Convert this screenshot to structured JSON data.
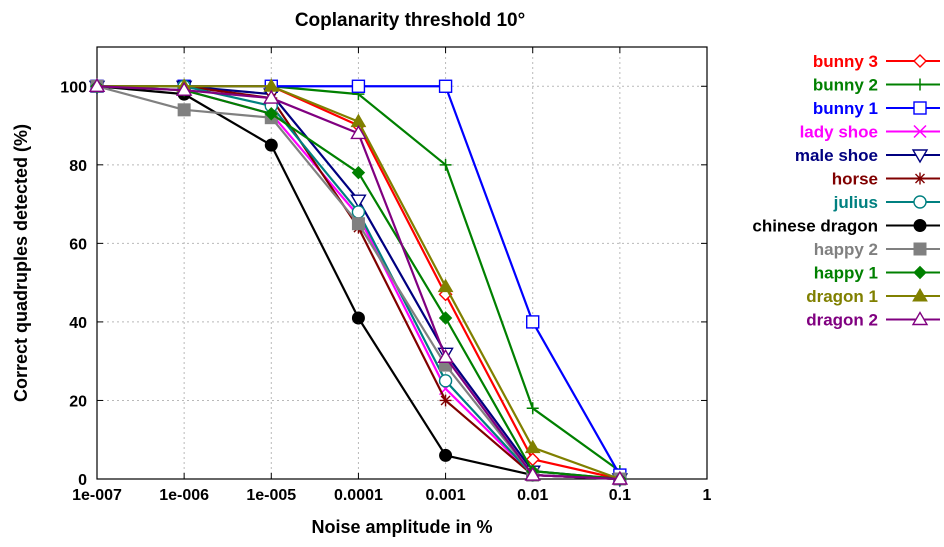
{
  "chart_data": {
    "type": "line",
    "title": "Coplanarity threshold 10°",
    "xlabel": "Noise amplitude in %",
    "ylabel": "Correct quadruples detected (%)",
    "x_scale": "log",
    "xlim": [
      1e-07,
      1
    ],
    "ylim": [
      0,
      110
    ],
    "x_ticks": [
      1e-07,
      1e-06,
      1e-05,
      0.0001,
      0.001,
      0.01,
      0.1,
      1
    ],
    "x_tick_labels": [
      "1e-007",
      "1e-006",
      "1e-005",
      "0.0001",
      "0.001",
      "0.01",
      "0.1",
      "1"
    ],
    "y_ticks": [
      0,
      20,
      40,
      60,
      80,
      100
    ],
    "y_tick_labels": [
      "0",
      "20",
      "40",
      "60",
      "80",
      "100"
    ],
    "grid": true,
    "legend_position": "outside-right",
    "x": [
      1e-07,
      1e-06,
      1e-05,
      0.0001,
      0.001,
      0.01,
      0.1
    ],
    "series": [
      {
        "name": "bunny 3",
        "color": "#ff0000",
        "marker": "diamond-open",
        "values": [
          100,
          100,
          100,
          90,
          47,
          5,
          0
        ]
      },
      {
        "name": "bunny 2",
        "color": "#008000",
        "marker": "plus",
        "values": [
          100,
          100,
          100,
          98,
          80,
          18,
          2
        ]
      },
      {
        "name": "bunny 1",
        "color": "#0000ff",
        "marker": "square-open",
        "values": [
          100,
          100,
          100,
          100,
          100,
          40,
          1
        ]
      },
      {
        "name": "lady shoe",
        "color": "#ff00ff",
        "marker": "cross",
        "values": [
          100,
          99,
          93,
          67,
          23,
          1,
          0
        ]
      },
      {
        "name": "male shoe",
        "color": "#000080",
        "marker": "triangle-down-open",
        "values": [
          100,
          100,
          98,
          71,
          32,
          2,
          0
        ]
      },
      {
        "name": "horse",
        "color": "#800000",
        "marker": "star",
        "values": [
          100,
          100,
          97,
          64,
          20,
          1,
          0
        ]
      },
      {
        "name": "julius",
        "color": "#008080",
        "marker": "circle-open",
        "values": [
          100,
          100,
          95,
          68,
          25,
          1,
          0
        ]
      },
      {
        "name": "chinese dragon",
        "color": "#000000",
        "marker": "circle-filled",
        "values": [
          100,
          98,
          85,
          41,
          6,
          1,
          0
        ]
      },
      {
        "name": "happy 2",
        "color": "#808080",
        "marker": "square-filled",
        "values": [
          100,
          94,
          92,
          65,
          29,
          1,
          0
        ]
      },
      {
        "name": "happy 1",
        "color": "#008000",
        "marker": "diamond-filled",
        "values": [
          100,
          99,
          93,
          78,
          41,
          2,
          0
        ]
      },
      {
        "name": "dragon 1",
        "color": "#808000",
        "marker": "triangle-up-filled",
        "values": [
          100,
          100,
          100,
          91,
          49,
          8,
          0
        ]
      },
      {
        "name": "dragon 2",
        "color": "#800080",
        "marker": "triangle-up-open",
        "values": [
          100,
          99,
          97,
          88,
          31,
          1,
          0
        ]
      }
    ]
  }
}
